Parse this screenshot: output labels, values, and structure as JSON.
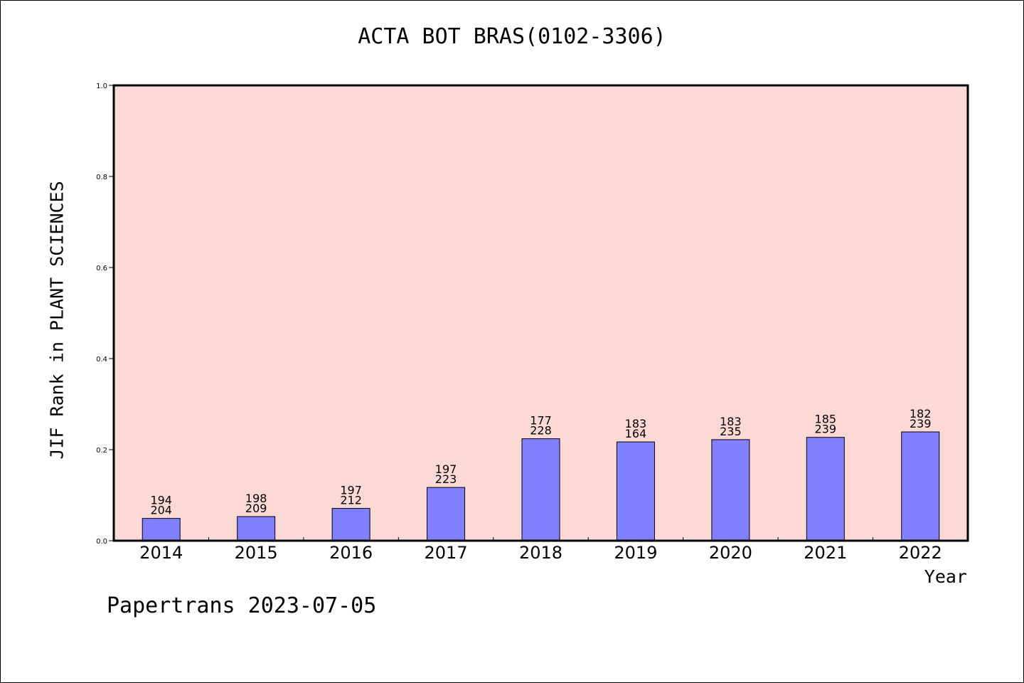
{
  "chart_data": {
    "type": "bar",
    "title": "ACTA BOT BRAS(0102-3306)",
    "xlabel": "Year",
    "ylabel": "JIF Rank in PLANT SCIENCES",
    "ylim": [
      0,
      1.0
    ],
    "yticks": [
      "0.0",
      "0.2",
      "0.4",
      "0.6",
      "0.8",
      "1.0"
    ],
    "grid": false,
    "categories": [
      "2014",
      "2015",
      "2016",
      "2017",
      "2018",
      "2019",
      "2020",
      "2021",
      "2022"
    ],
    "values": [
      0.049,
      0.053,
      0.071,
      0.117,
      0.224,
      0.217,
      0.222,
      0.227,
      0.239
    ],
    "labels_top": [
      "194",
      "198",
      "197",
      "197",
      "177",
      "183",
      "183",
      "185",
      "182"
    ],
    "labels_bottom": [
      "204",
      "209",
      "212",
      "223",
      "228",
      "164",
      "235",
      "239",
      "239"
    ],
    "colors": {
      "plot_bg": "#fdd9d5",
      "bar": "#8080ff"
    }
  },
  "footer": "Papertrans 2023-07-05"
}
